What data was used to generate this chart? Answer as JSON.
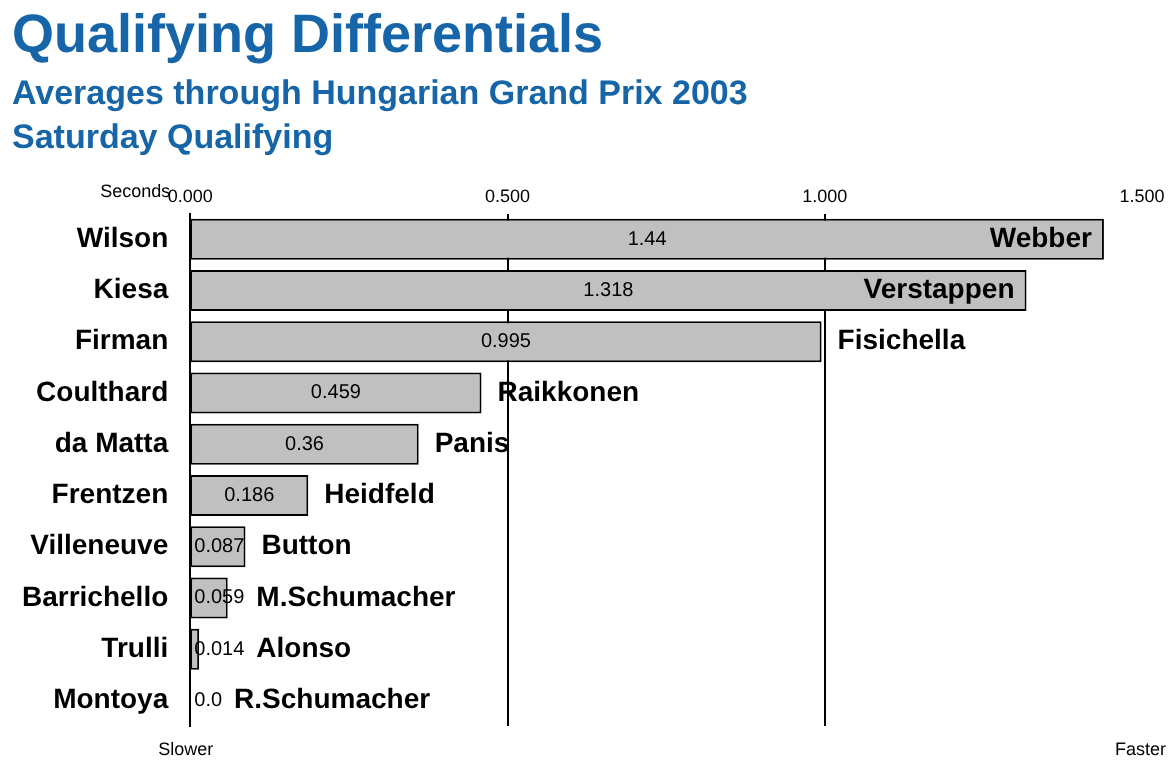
{
  "chart_data": {
    "type": "bar",
    "orientation": "horizontal",
    "title": "Qualifying Differentials",
    "subtitle": "Averages through Hungarian Grand Prix 2003\nSaturday Qualifying",
    "xlabel": "Seconds",
    "categories": [
      "Wilson",
      "Kiesa",
      "Firman",
      "Coulthard",
      "da Matta",
      "Frentzen",
      "Villeneuve",
      "Barrichello",
      "Trulli",
      "Montoya"
    ],
    "series": [
      {
        "color": "#c0c0c0",
        "values": [
          1.44,
          1.318,
          0.995,
          0.459,
          0.36,
          0.186,
          0.087,
          0.059,
          0.014,
          0.0
        ],
        "value_labels": [
          "1.44",
          "1.318",
          "0.995",
          "0.459",
          "0.36",
          "0.186",
          "0.087",
          "0.059",
          "0.014",
          "0.0"
        ]
      }
    ],
    "xlim": [
      0,
      1.5
    ],
    "xticks": [
      {
        "value": 0,
        "label": "0.000"
      },
      {
        "value": 0.5,
        "label": "0.500"
      },
      {
        "value": 1,
        "label": "1.000"
      },
      {
        "value": 1.5,
        "label": "1.500"
      }
    ],
    "grid": "x",
    "legend": false,
    "annotations": [
      "Slower",
      "Faster",
      {
        "text": "Webber",
        "x": 1.44,
        "y": "Wilson"
      },
      {
        "text": "Verstappen",
        "x": 1.318,
        "y": "Kiesa"
      },
      {
        "text": "Fisichella",
        "x": 0.995,
        "y": "Firman"
      },
      {
        "text": "Raikkonen",
        "x": 0.459,
        "y": "Coulthard"
      },
      {
        "text": "Panis",
        "x": 0.36,
        "y": "da Matta"
      },
      {
        "text": "Heidfeld",
        "x": 0.186,
        "y": "Frentzen"
      },
      {
        "text": "Button",
        "x": 0.087,
        "y": "Villeneuve"
      },
      {
        "text": "M.Schumacher",
        "x": 0.059,
        "y": "Barrichello"
      },
      {
        "text": "Alonso",
        "x": 0.014,
        "y": "Trulli"
      },
      {
        "text": "R.Schumacher",
        "x": 0.0,
        "y": "Montoya"
      }
    ]
  }
}
